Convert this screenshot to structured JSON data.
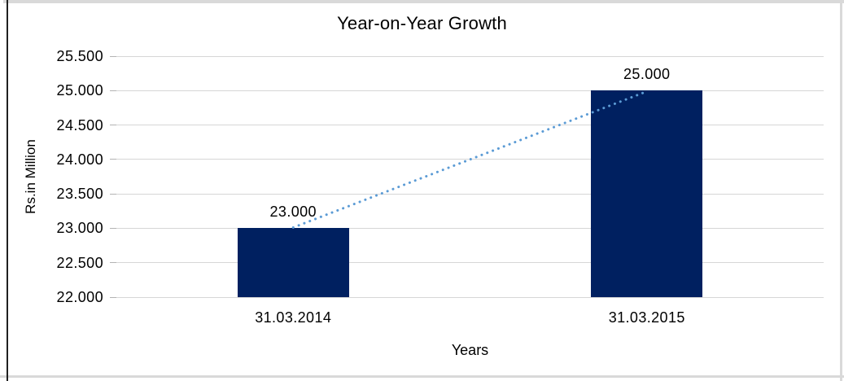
{
  "chart_data": {
    "type": "bar",
    "title": "Year-on-Year Growth",
    "xlabel": "Years",
    "ylabel": "Rs.in Million",
    "categories": [
      "31.03.2014",
      "31.03.2015"
    ],
    "values": [
      23.0,
      25.0
    ],
    "value_labels": [
      "23.000",
      "25.000"
    ],
    "ylim": [
      22.0,
      25.5
    ],
    "ytick_step": 0.5,
    "ytick_labels": [
      "22.000",
      "22.500",
      "23.000",
      "23.500",
      "24.000",
      "24.500",
      "25.000",
      "25.500"
    ],
    "grid": true,
    "legend": "none",
    "trendline": {
      "style": "dotted",
      "connects": [
        "23.000",
        "25.000"
      ]
    },
    "colors": {
      "bar": "#002060",
      "trendline": "#5b9bd5",
      "gridline": "#d6d6d6",
      "tick": "#b3b3b3",
      "text": "#000000",
      "frame_border": "#d9d9d9",
      "left_rule": "#1f1f1f"
    }
  }
}
